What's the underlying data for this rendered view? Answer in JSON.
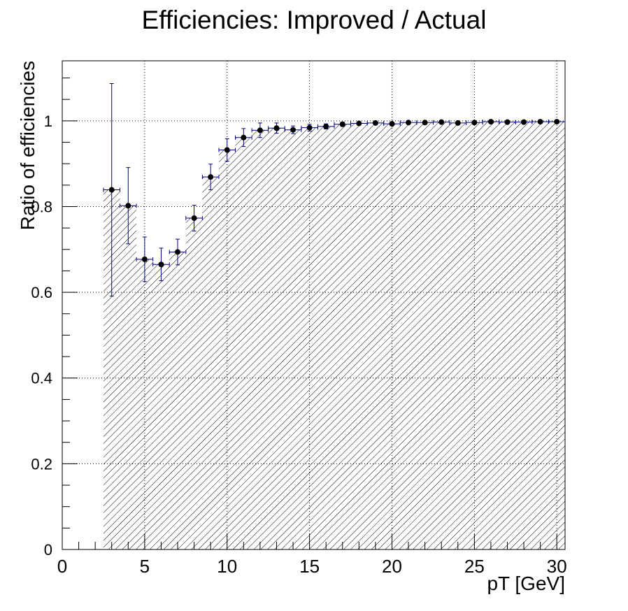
{
  "chart_data": {
    "type": "scatter",
    "title": "Efficiencies: Improved / Actual",
    "xlabel": "pT [GeV]",
    "ylabel": "Ratio of efficiencies",
    "xlim": [
      0,
      30.5
    ],
    "ylim": [
      0,
      1.14
    ],
    "grid": true,
    "x_ticks": [
      0,
      5,
      10,
      15,
      20,
      25,
      30
    ],
    "x_tick_labels": [
      "0",
      "5",
      "10",
      "15",
      "20",
      "25",
      "30"
    ],
    "y_ticks": [
      0,
      0.2,
      0.4,
      0.6,
      0.8,
      1
    ],
    "y_tick_labels": [
      "0",
      "0.2",
      "0.4",
      "0.6",
      "0.8",
      "1"
    ],
    "bin_half_width": 0.5,
    "colors": {
      "hatch": "#000000",
      "errorbar": "#000080",
      "marker": "#000000",
      "grid": "#000000"
    },
    "series": [
      {
        "x": [
          3,
          4,
          5,
          6,
          7,
          8,
          9,
          10,
          11,
          12,
          13,
          14,
          15,
          16,
          17,
          18,
          19,
          20,
          21,
          22,
          23,
          24,
          25,
          26,
          27,
          28,
          29,
          30
        ],
        "y": [
          0.839,
          0.802,
          0.677,
          0.665,
          0.694,
          0.773,
          0.869,
          0.932,
          0.961,
          0.978,
          0.983,
          0.979,
          0.984,
          0.987,
          0.992,
          0.994,
          0.995,
          0.993,
          0.996,
          0.996,
          0.997,
          0.995,
          0.996,
          0.998,
          0.997,
          0.997,
          0.998,
          0.998
        ],
        "err": [
          0.248,
          0.089,
          0.052,
          0.038,
          0.03,
          0.03,
          0.03,
          0.026,
          0.021,
          0.017,
          0.012,
          0.009,
          0.008,
          0.006,
          0.005,
          0.004,
          0.004,
          0.004,
          0.003,
          0.003,
          0.003,
          0.003,
          0.003,
          0.002,
          0.002,
          0.002,
          0.002,
          0.002
        ]
      }
    ]
  }
}
